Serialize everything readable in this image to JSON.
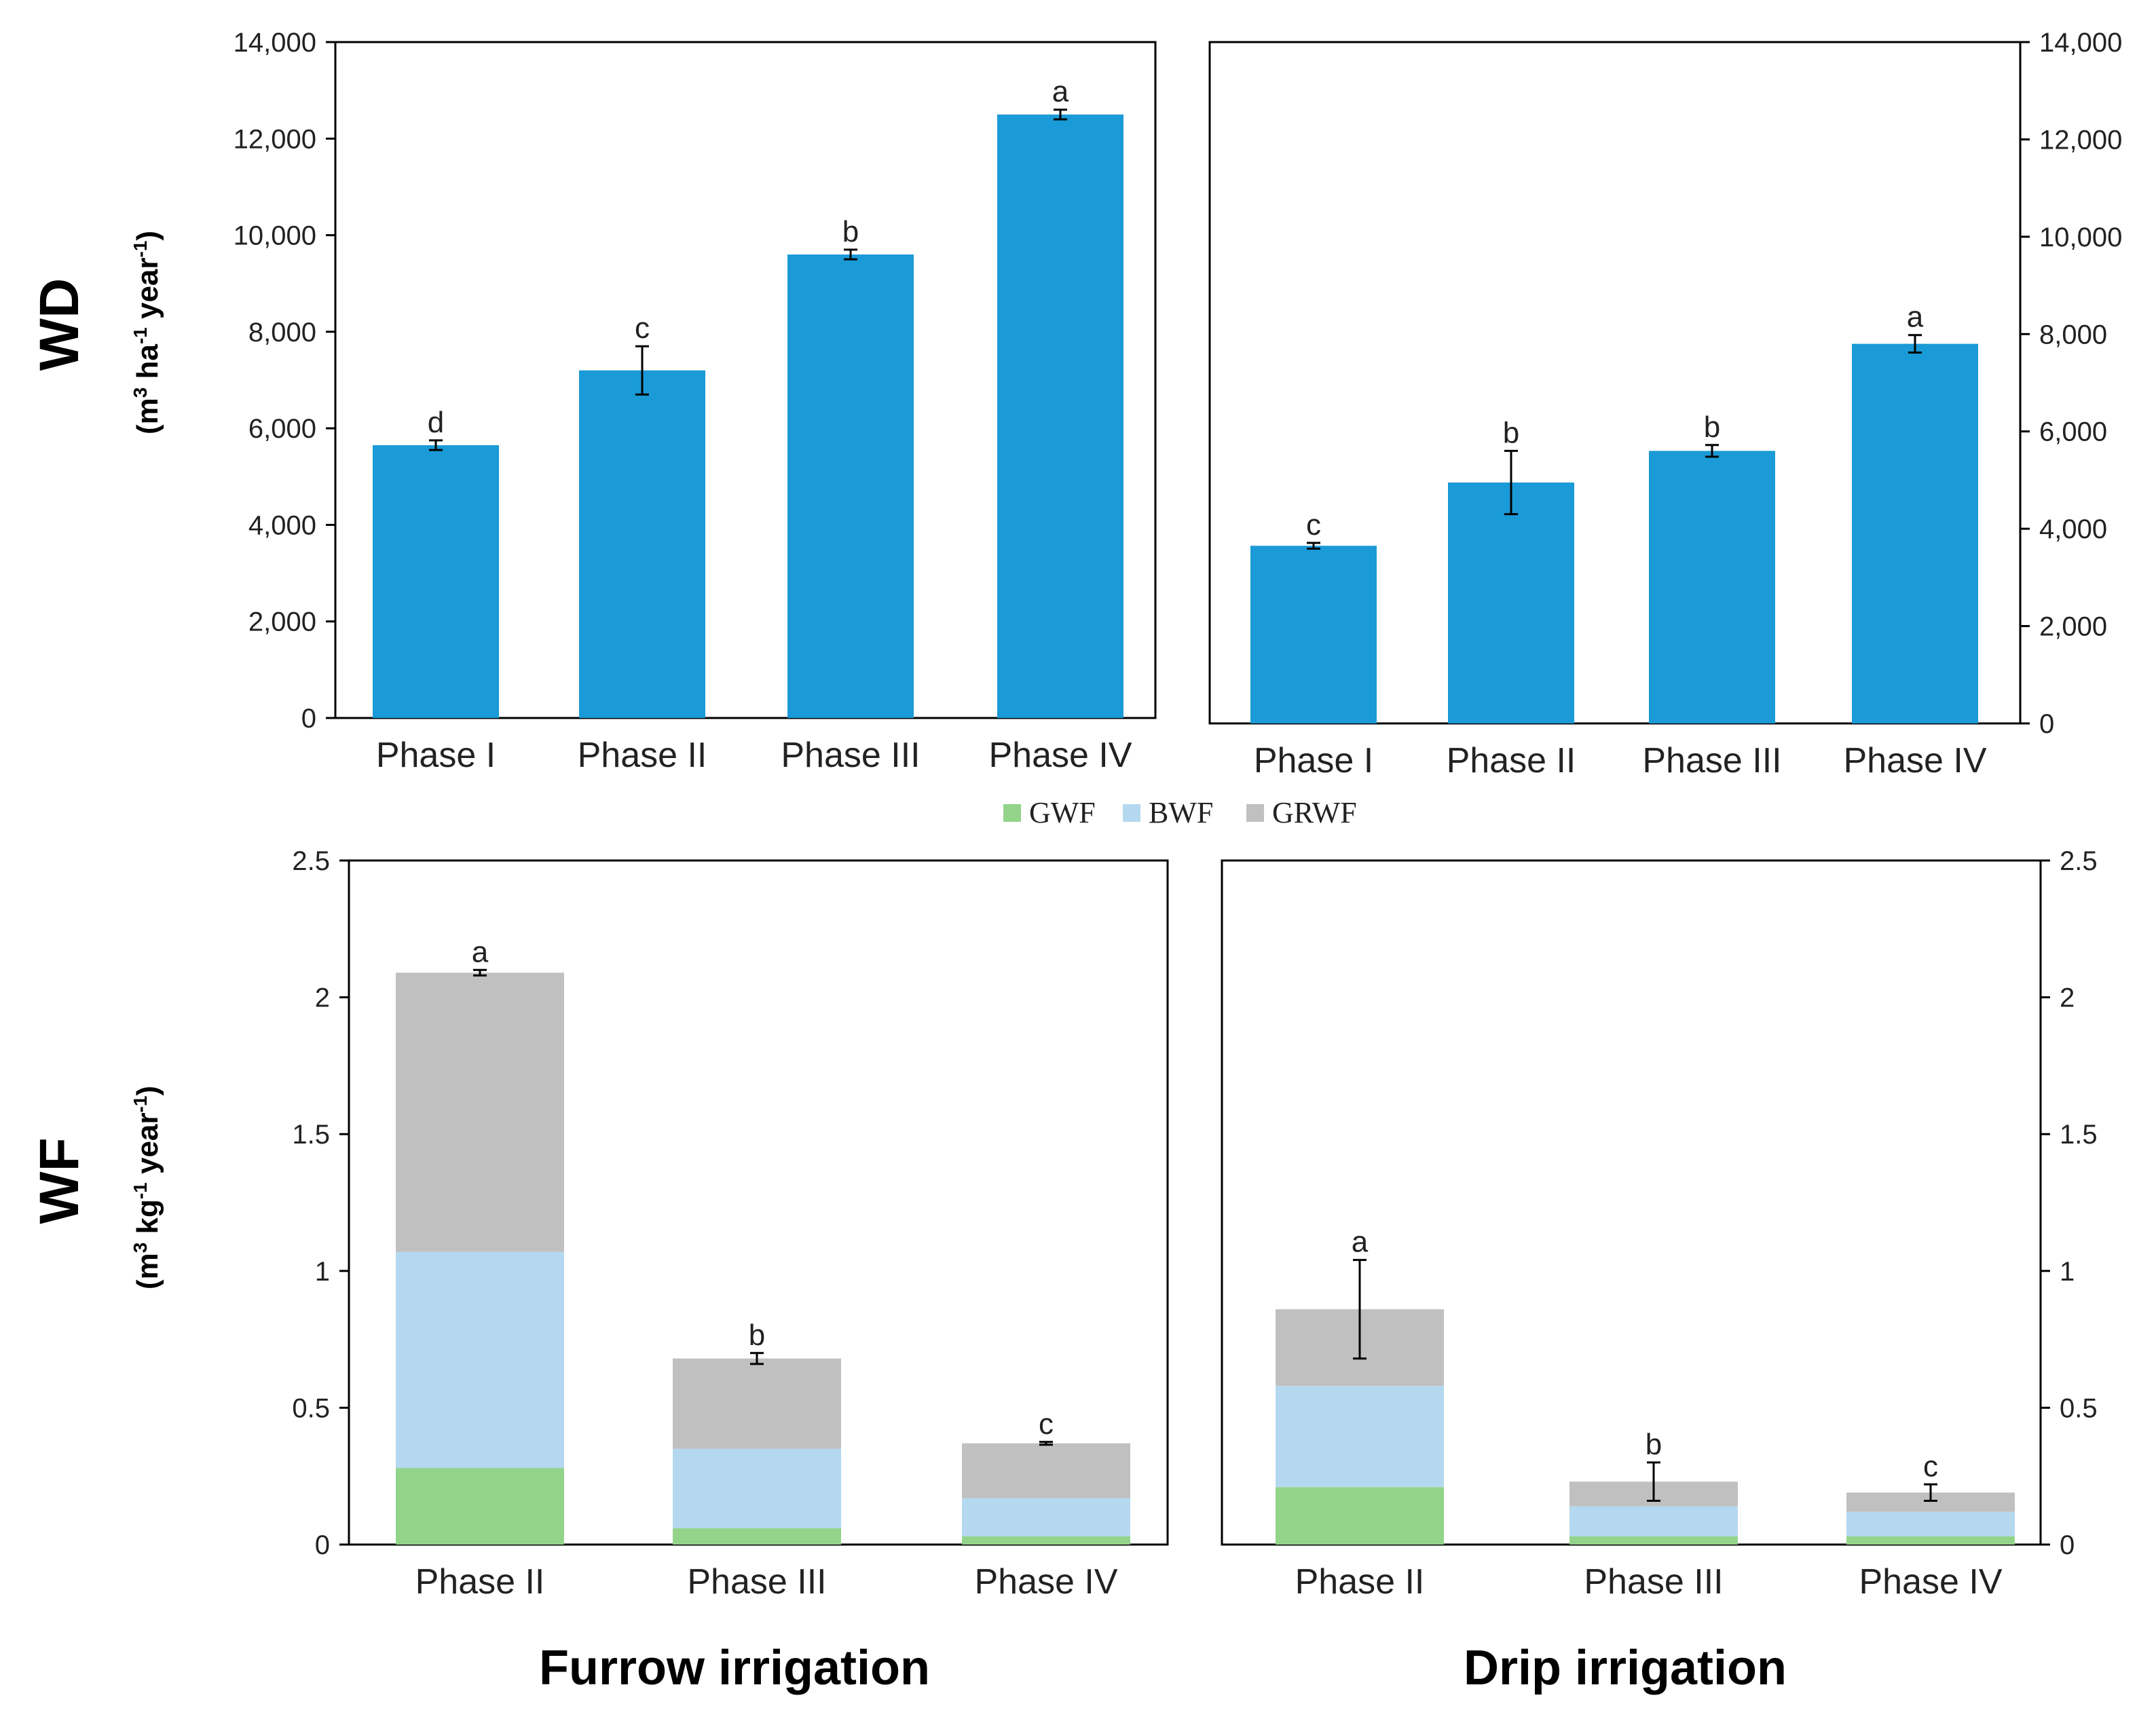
{
  "colors": {
    "wd_bar": "#1a9ad6",
    "gwf": "#93d38a",
    "bwf": "#b4d8ef",
    "grwf": "#c0c0c0",
    "axis": "#000000"
  },
  "labels": {
    "wd_title": "WD",
    "wd_unit": {
      "base": "(m",
      "sup1": "3",
      "mid": " ha",
      "sup2": "-1",
      "mid2": " year",
      "sup3": "-1",
      "end": ")"
    },
    "wf_title": "WF",
    "wf_unit": {
      "base": "(m",
      "sup1": "3",
      "mid": " kg",
      "sup2": "-1",
      "mid2": " year",
      "sup3": "-1",
      "end": ")"
    },
    "furrow": "Furrow irrigation",
    "drip": "Drip irrigation"
  },
  "legend": [
    {
      "key": "gwf",
      "label": "GWF"
    },
    {
      "key": "bwf",
      "label": "BWF"
    },
    {
      "key": "grwf",
      "label": "GRWF"
    }
  ],
  "chart_data": [
    {
      "id": "wd_furrow",
      "type": "bar",
      "categories": [
        "Phase I",
        "Phase II",
        "Phase III",
        "Phase IV"
      ],
      "values": [
        5650,
        7200,
        9600,
        12500
      ],
      "errors": [
        100,
        500,
        100,
        100
      ],
      "letters": [
        "d",
        "c",
        "b",
        "a"
      ],
      "ylim": [
        0,
        14000
      ],
      "yticks": [
        "0",
        "2,000",
        "4,000",
        "6,000",
        "8,000",
        "10,000",
        "12,000",
        "14,000"
      ],
      "ytick_values": [
        0,
        2000,
        4000,
        6000,
        8000,
        10000,
        12000,
        14000
      ],
      "axis_side": "left",
      "xlabel": "Furrow irrigation",
      "ylabel": "WD (m³ ha⁻¹ year⁻¹)"
    },
    {
      "id": "wd_drip",
      "type": "bar",
      "categories": [
        "Phase I",
        "Phase II",
        "Phase III",
        "Phase IV"
      ],
      "values": [
        3650,
        4950,
        5600,
        7800
      ],
      "errors": [
        60,
        650,
        120,
        180
      ],
      "letters": [
        "c",
        "b",
        "b",
        "a"
      ],
      "ylim": [
        0,
        14000
      ],
      "yticks": [
        "0",
        "2,000",
        "4,000",
        "6,000",
        "8,000",
        "10,000",
        "12,000",
        "14,000"
      ],
      "ytick_values": [
        0,
        2000,
        4000,
        6000,
        8000,
        10000,
        12000,
        14000
      ],
      "axis_side": "right",
      "xlabel": "Drip irrigation",
      "ylabel": "WD (m³ ha⁻¹ year⁻¹)"
    },
    {
      "id": "wf_furrow",
      "type": "bar",
      "stacked": true,
      "categories": [
        "Phase II",
        "Phase III",
        "Phase IV"
      ],
      "series": [
        {
          "name": "GWF",
          "values": [
            0.28,
            0.06,
            0.03
          ]
        },
        {
          "name": "BWF",
          "values": [
            0.79,
            0.29,
            0.14
          ]
        },
        {
          "name": "GRWF",
          "values": [
            1.02,
            0.33,
            0.2
          ]
        }
      ],
      "totals": [
        2.09,
        0.68,
        0.37
      ],
      "errors": [
        0.01,
        0.02,
        0.005
      ],
      "letters": [
        "a",
        "b",
        "c"
      ],
      "ylim": [
        0,
        2.5
      ],
      "yticks": [
        "0",
        "0.5",
        "1",
        "1.5",
        "2",
        "2.5"
      ],
      "ytick_values": [
        0,
        0.5,
        1,
        1.5,
        2,
        2.5
      ],
      "axis_side": "left",
      "xlabel": "Furrow irrigation",
      "ylabel": "WF (m³ kg⁻¹ year⁻¹)"
    },
    {
      "id": "wf_drip",
      "type": "bar",
      "stacked": true,
      "categories": [
        "Phase II",
        "Phase III",
        "Phase IV"
      ],
      "series": [
        {
          "name": "GWF",
          "values": [
            0.21,
            0.03,
            0.03
          ]
        },
        {
          "name": "BWF",
          "values": [
            0.37,
            0.11,
            0.09
          ]
        },
        {
          "name": "GRWF",
          "values": [
            0.28,
            0.09,
            0.07
          ]
        }
      ],
      "totals": [
        0.86,
        0.23,
        0.19
      ],
      "errors": [
        0.18,
        0.07,
        0.03
      ],
      "letters": [
        "a",
        "b",
        "c"
      ],
      "ylim": [
        0,
        2.5
      ],
      "yticks": [
        "0",
        "0.5",
        "1",
        "1.5",
        "2",
        "2.5"
      ],
      "ytick_values": [
        0,
        0.5,
        1,
        1.5,
        2,
        2.5
      ],
      "axis_side": "right",
      "xlabel": "Drip irrigation",
      "ylabel": "WF (m³ kg⁻¹ year⁻¹)"
    }
  ]
}
